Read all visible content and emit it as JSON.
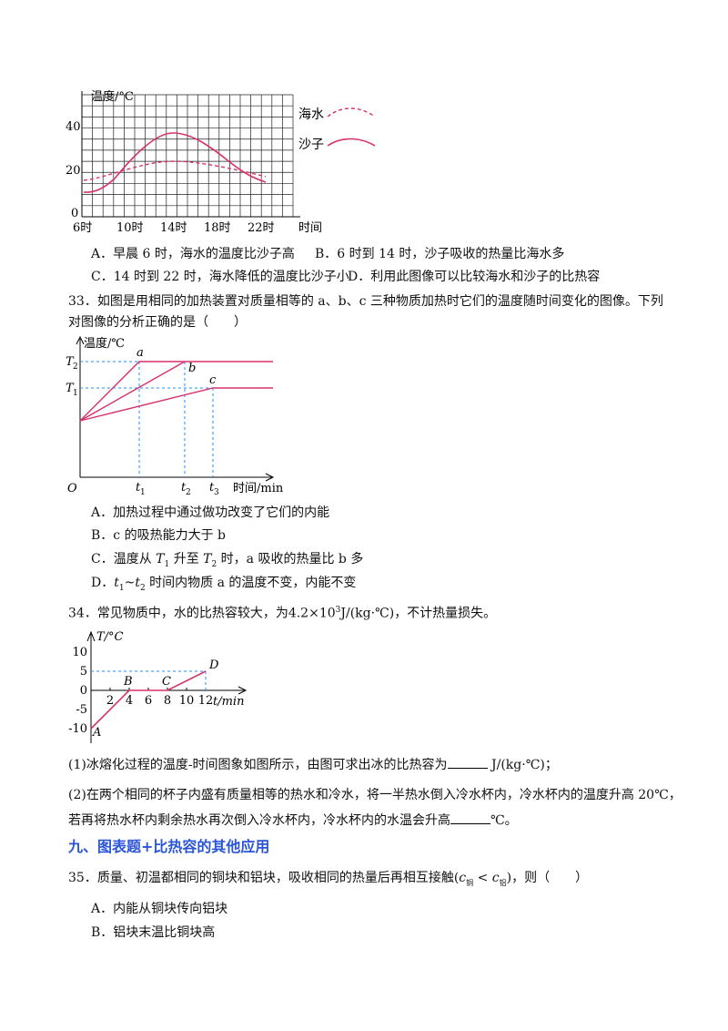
{
  "graph1": {
    "ylabel": "温度/°C",
    "xlabel": "时间",
    "yticks": [
      "0",
      "20",
      "40"
    ],
    "xticks": [
      "6时",
      "10时",
      "14时",
      "18时",
      "22时"
    ],
    "legend_sea": "海水",
    "legend_sand": "沙子",
    "colors": {
      "line": "#d6336c",
      "grid": "#222"
    }
  },
  "q32_options": {
    "A": "A．早晨 6 时，海水的温度比沙子高",
    "B": "B．6 时到 14 时，沙子吸收的热量比海水多",
    "C": "C．14 时到 22 时，海水降低的温度比沙子小",
    "D": "D．利用此图像可以比较海水和沙子的比热容"
  },
  "q33": {
    "line1": "33．如图是用相同的加热装置对质量相等的 a、b、c 三种物质加热时它们的温度随时间变化的图像。下列",
    "line2": "对图像的分析正确的是（　　）"
  },
  "graph2": {
    "ylabel": "温度/℃",
    "xlabel": "时间/min",
    "origin": "O",
    "T2": "T",
    "T2_sub": "2",
    "T1": "T",
    "T1_sub": "1",
    "t1": "t",
    "t1_sub": "1",
    "t2": "t",
    "t2_sub": "2",
    "t3": "t",
    "t3_sub": "3",
    "a": "a",
    "b": "b",
    "c": "c"
  },
  "q33_options": {
    "A": "A．加热过程中通过做功改变了它们的内能",
    "B": "B．c 的吸热能力大于 b",
    "C_pre": "C．温度从 ",
    "C_T1": "T",
    "C_T1sub": "1",
    "C_mid": " 升至 ",
    "C_T2": "T",
    "C_T2sub": "2",
    "C_post": " 时，a 吸收的热量比 b 多",
    "D_pre": "D．",
    "D_t1": "t",
    "D_t1sub": "1",
    "D_tilde": "~",
    "D_t2": "t",
    "D_t2sub": "2",
    "D_post": " 时间内物质 a 的温度不变，内能不变"
  },
  "q34": {
    "stem_pre": "34．常见物质中，水的比热容较大，为",
    "stem_val": "4.2×10",
    "stem_exp": "3",
    "stem_unit": "J/(kg·℃)",
    "stem_post": "，不计热量损失。",
    "sub1_pre": "(1)冰熔化过程的温度-时间图象如图所示，由图可求出冰的比热容为",
    "sub1_unit": "J/(kg·℃)；",
    "sub2_line1": "(2)在两个相同的杯子内盛有质量相等的热水和冷水，将一半热水倒入冷水杯内，冷水杯内的温度升高 20℃，",
    "sub2_line2_pre": "若再将热水杯内剩余热水再次倒入冷水杯内，冷水杯内的水温会升高",
    "sub2_line2_post": "℃。"
  },
  "graph3": {
    "ylabel": "T/°C",
    "xlabel": "t/min",
    "yticks": [
      "10",
      "5",
      "0",
      "-5",
      "-10"
    ],
    "xticks": [
      "2",
      "4",
      "6",
      "8",
      "10",
      "12"
    ],
    "points": [
      "A",
      "B",
      "C",
      "D"
    ],
    "chart_data": {
      "type": "line",
      "x": [
        0,
        4,
        8,
        12
      ],
      "y": [
        -10,
        0,
        0,
        5
      ],
      "ylim": [
        -10,
        10
      ],
      "xlim": [
        0,
        12
      ]
    }
  },
  "section9": "九、图表题+比热容的其他应用",
  "q35": {
    "stem": "35．质量、初温都相同的铜块和铝块，吸收相同的热量后再相互接触",
    "cond_c1": "c",
    "cond_sub1": "铜",
    "cond_lt": " < ",
    "cond_c2": "c",
    "cond_sub2": "铝",
    "stem_post": "，则（　　）",
    "A": "A．内能从铜块传向铝块",
    "B": "B．铝块末温比铜块高"
  }
}
